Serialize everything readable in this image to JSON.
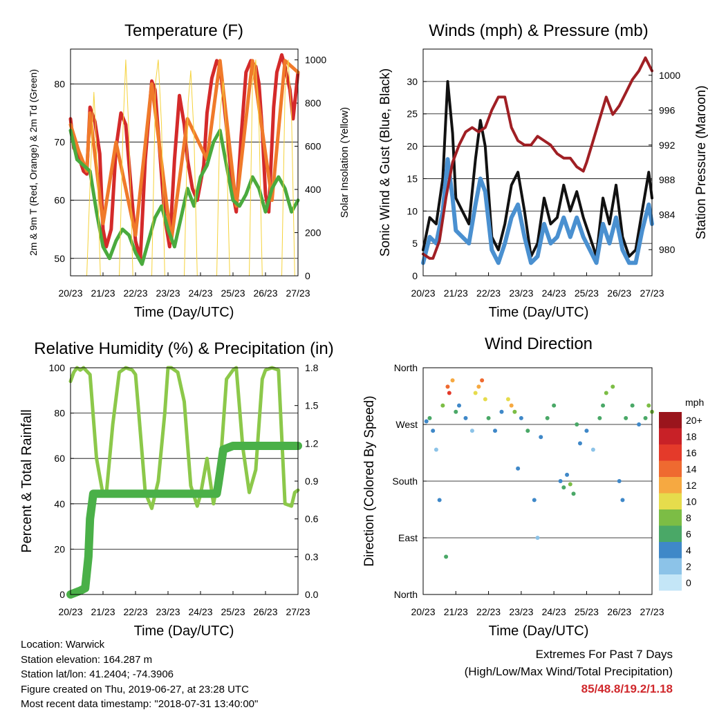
{
  "panels": {
    "temperature": {
      "title": "Temperature (F)",
      "xlabel": "Time (Day/UTC)",
      "ylabel_left": "2m & 9m T (Red, Orange) & 2m Td (Green)",
      "ylabel_right": "Solar Insolation (Yellow)"
    },
    "winds": {
      "title": "Winds (mph) & Pressure (mb)",
      "xlabel": "Time (Day/UTC)",
      "ylabel_left": "Sonic Wind & Gust (Blue, Black)",
      "ylabel_right": "Station Pressure (Maroon)"
    },
    "humidity": {
      "title": "Relative Humidity (%) & Precipitation (in)",
      "xlabel": "Time (Day/UTC)",
      "ylabel_left": "Percent & Total Rainfall"
    },
    "direction": {
      "title": "Wind Direction",
      "xlabel": "Time (Day/UTC)",
      "ylabel_left": "Direction (Colored By Speed)",
      "legend_title": "mph"
    }
  },
  "info": {
    "location": "Location: Warwick",
    "elevation": "Station elevation: 164.287 m",
    "latlon": "Station lat/lon: 41.2404; -74.3906",
    "created": "Figure created on Thu, 2019-06-27, at 23:28 UTC",
    "recent": "Most recent data timestamp: \"2018-07-31 13:40:00\""
  },
  "extremes": {
    "heading": "Extremes For Past 7 Days",
    "subheading": "(High/Low/Max Wind/Total Precipitation)",
    "values": "85/48.8/19.2/1.18"
  },
  "chart_data": [
    {
      "id": "temperature",
      "type": "line",
      "title": "Temperature (F)",
      "xlabel": "Time (Day/UTC)",
      "ylabel": "2m & 9m T (Red, Orange) & 2m Td (Green)",
      "y2label": "Solar Insolation (Yellow)",
      "x_ticks": [
        "20/23",
        "21/23",
        "22/23",
        "23/23",
        "24/23",
        "25/23",
        "26/23",
        "27/23"
      ],
      "ylim": [
        47,
        86
      ],
      "y_ticks": [
        50,
        60,
        70,
        80
      ],
      "y2lim": [
        0,
        1050
      ],
      "y2_ticks": [
        0,
        200,
        400,
        600,
        800,
        1000
      ],
      "grid": true,
      "series": [
        {
          "name": "2m T",
          "color": "#d42a2a",
          "x": [
            0,
            0.1,
            0.25,
            0.4,
            0.5,
            0.6,
            0.75,
            0.9,
            1.0,
            1.1,
            1.25,
            1.4,
            1.55,
            1.7,
            1.85,
            2.0,
            2.15,
            2.3,
            2.5,
            2.6,
            2.75,
            2.9,
            3.05,
            3.2,
            3.35,
            3.5,
            3.6,
            3.75,
            3.9,
            4.0,
            4.1,
            4.2,
            4.35,
            4.5,
            4.6,
            4.7,
            4.85,
            5.0,
            5.1,
            5.25,
            5.4,
            5.55,
            5.7,
            5.8,
            5.9,
            6.0,
            6.1,
            6.25,
            6.35,
            6.5,
            6.6,
            6.75,
            6.85,
            7.0
          ],
          "values": [
            74,
            69,
            67.5,
            65,
            64.5,
            76,
            73.5,
            68,
            55,
            52,
            55,
            69,
            75,
            73,
            63,
            53,
            50,
            67,
            80.5,
            79,
            68,
            57,
            52,
            67,
            78,
            73,
            67,
            62,
            60,
            63,
            66,
            75,
            81,
            84,
            83,
            78,
            70,
            61,
            58,
            71,
            82,
            84,
            83,
            80,
            72,
            61,
            58,
            76,
            82,
            85,
            83,
            79,
            74,
            82
          ]
        },
        {
          "name": "9m T",
          "color": "#f07a2a",
          "x": [
            0,
            0.25,
            0.5,
            0.6,
            1.0,
            1.4,
            2.0,
            2.5,
            3.1,
            3.6,
            4.2,
            4.6,
            5.1,
            5.6,
            6.2,
            6.6,
            7.0
          ],
          "values": [
            73,
            68.5,
            65,
            75,
            56,
            70,
            54,
            80,
            53,
            74,
            67,
            84,
            59,
            84,
            60,
            84,
            82
          ]
        },
        {
          "name": "2m Td",
          "color": "#4aaa3e",
          "x": [
            0,
            0.2,
            0.4,
            0.6,
            0.8,
            1.0,
            1.2,
            1.4,
            1.6,
            1.8,
            2.0,
            2.2,
            2.4,
            2.6,
            2.8,
            3.0,
            3.2,
            3.4,
            3.6,
            3.8,
            4.0,
            4.2,
            4.4,
            4.6,
            4.8,
            5.0,
            5.2,
            5.4,
            5.6,
            5.8,
            6.0,
            6.2,
            6.4,
            6.6,
            6.8,
            7.0
          ],
          "values": [
            72,
            67,
            66,
            65,
            58,
            52,
            50,
            53,
            55,
            54,
            51,
            49,
            53,
            57,
            59,
            55,
            52,
            57,
            62,
            59,
            64,
            66,
            70,
            72,
            66,
            60,
            59,
            61,
            64,
            62,
            58,
            62,
            64,
            62,
            58,
            60
          ]
        },
        {
          "name": "Solar Insolation",
          "axis": "right",
          "color": "#f5d23a",
          "x": [
            0.5,
            0.62,
            0.72,
            0.8,
            0.92,
            1.5,
            1.62,
            1.7,
            1.8,
            1.92,
            2.5,
            2.62,
            2.7,
            2.8,
            2.9,
            3.5,
            3.62,
            3.7,
            3.8,
            3.9,
            4.5,
            4.6,
            4.7,
            4.8,
            4.9,
            5.5,
            5.6,
            5.7,
            5.8,
            5.9,
            6.5,
            6.6,
            6.7,
            6.8,
            6.9
          ],
          "values": [
            0,
            500,
            850,
            600,
            0,
            0,
            700,
            1000,
            650,
            0,
            0,
            900,
            1000,
            700,
            0,
            0,
            800,
            950,
            650,
            0,
            0,
            750,
            900,
            600,
            0,
            0,
            900,
            1000,
            700,
            0,
            0,
            850,
            1000,
            750,
            0
          ]
        }
      ]
    },
    {
      "id": "winds",
      "type": "line",
      "title": "Winds (mph) & Pressure (mb)",
      "xlabel": "Time (Day/UTC)",
      "ylabel": "Sonic Wind & Gust (Blue, Black)",
      "y2label": "Station Pressure (Maroon)",
      "x_ticks": [
        "20/23",
        "21/23",
        "22/23",
        "23/23",
        "24/23",
        "25/23",
        "26/23",
        "27/23"
      ],
      "ylim": [
        0,
        35
      ],
      "y_ticks": [
        0,
        5,
        10,
        15,
        20,
        25,
        30
      ],
      "y2lim": [
        977,
        1003
      ],
      "y2_ticks": [
        980,
        984,
        988,
        992,
        996,
        1000
      ],
      "grid": true,
      "series": [
        {
          "name": "Gust",
          "color": "#111111",
          "x": [
            0,
            0.2,
            0.4,
            0.6,
            0.75,
            0.9,
            1.0,
            1.2,
            1.4,
            1.6,
            1.75,
            1.9,
            2.1,
            2.3,
            2.5,
            2.7,
            2.9,
            3.1,
            3.3,
            3.5,
            3.7,
            3.9,
            4.1,
            4.3,
            4.5,
            4.7,
            4.9,
            5.1,
            5.3,
            5.5,
            5.7,
            5.9,
            6.1,
            6.3,
            6.5,
            6.7,
            6.9,
            7.0
          ],
          "values": [
            4,
            9,
            8,
            15,
            30,
            22,
            12,
            10,
            8,
            18,
            24,
            20,
            6,
            4,
            8,
            14,
            16,
            10,
            3,
            5,
            12,
            8,
            9,
            14,
            10,
            13,
            9,
            6,
            3,
            12,
            8,
            14,
            6,
            3,
            4,
            10,
            16,
            12
          ]
        },
        {
          "name": "Wind",
          "color": "#4a90d0",
          "x": [
            0,
            0.2,
            0.4,
            0.6,
            0.75,
            0.9,
            1.0,
            1.2,
            1.4,
            1.6,
            1.75,
            1.9,
            2.1,
            2.3,
            2.5,
            2.7,
            2.9,
            3.1,
            3.3,
            3.5,
            3.7,
            3.9,
            4.1,
            4.3,
            4.5,
            4.7,
            4.9,
            5.1,
            5.3,
            5.5,
            5.7,
            5.9,
            6.1,
            6.3,
            6.5,
            6.7,
            6.9,
            7.0
          ],
          "values": [
            2,
            6,
            5,
            10,
            18,
            12,
            7,
            6,
            5,
            11,
            15,
            13,
            4,
            2,
            5,
            9,
            11,
            6,
            2,
            3,
            8,
            5,
            6,
            9,
            6,
            9,
            6,
            4,
            2,
            8,
            5,
            9,
            4,
            2,
            2,
            7,
            11,
            8
          ]
        },
        {
          "name": "Station Pressure",
          "axis": "right",
          "color": "#a01f24",
          "x": [
            0,
            0.2,
            0.3,
            0.5,
            0.7,
            0.9,
            1.1,
            1.3,
            1.5,
            1.7,
            1.9,
            2.1,
            2.3,
            2.5,
            2.7,
            2.9,
            3.1,
            3.3,
            3.5,
            3.7,
            3.9,
            4.1,
            4.3,
            4.5,
            4.7,
            4.9,
            5.0,
            5.2,
            5.4,
            5.6,
            5.8,
            6.0,
            6.2,
            6.4,
            6.6,
            6.8,
            7.0
          ],
          "values": [
            979.5,
            979,
            979,
            981,
            986,
            990,
            992,
            993.5,
            994,
            993.5,
            994,
            996,
            997.5,
            997.5,
            994,
            992.5,
            992,
            992,
            993,
            992.5,
            992,
            991,
            990.5,
            990.5,
            989.5,
            989,
            990,
            992.5,
            995,
            997.5,
            995.5,
            996.5,
            998,
            999.5,
            1000.5,
            1002,
            1000.5
          ]
        }
      ]
    },
    {
      "id": "humidity",
      "type": "line",
      "title": "Relative Humidity (%) & Precipitation (in)",
      "xlabel": "Time (Day/UTC)",
      "ylabel": "Percent & Total Rainfall",
      "x_ticks": [
        "20/23",
        "21/23",
        "22/23",
        "23/23",
        "24/23",
        "25/23",
        "26/23",
        "27/23"
      ],
      "ylim": [
        0,
        100
      ],
      "y_ticks": [
        0,
        20,
        40,
        60,
        80,
        100
      ],
      "y2lim": [
        0,
        1.8
      ],
      "y2_ticks": [
        "0.0",
        "0.3",
        "0.6",
        "0.9",
        "1.2",
        "1.5",
        "1.8"
      ],
      "grid": true,
      "series": [
        {
          "name": "Relative Humidity",
          "color": "#8cc84a",
          "x": [
            0,
            0.1,
            0.2,
            0.3,
            0.4,
            0.6,
            0.8,
            1.0,
            1.1,
            1.3,
            1.5,
            1.7,
            1.9,
            2.0,
            2.1,
            2.3,
            2.5,
            2.7,
            2.9,
            3.0,
            3.1,
            3.3,
            3.5,
            3.7,
            3.9,
            4.0,
            4.2,
            4.4,
            4.6,
            4.8,
            5.0,
            5.1,
            5.3,
            5.5,
            5.7,
            5.9,
            6.0,
            6.2,
            6.4,
            6.6,
            6.8,
            6.9,
            7.0
          ],
          "values": [
            94,
            98,
            100,
            99,
            100,
            97,
            60,
            44,
            44,
            75,
            98,
            100,
            99,
            97,
            80,
            45,
            38,
            50,
            80,
            100,
            100,
            98,
            85,
            48,
            39,
            44,
            60,
            40,
            55,
            95,
            99,
            100,
            65,
            45,
            55,
            95,
            99,
            100,
            99,
            40,
            39,
            45,
            46
          ]
        },
        {
          "name": "Total Rainfall",
          "axis": "right",
          "color": "#4ab048",
          "x": [
            0,
            0.3,
            0.45,
            0.55,
            0.6,
            0.7,
            0.8,
            4.5,
            4.55,
            4.62,
            4.7,
            5.0,
            7.0
          ],
          "values": [
            0,
            0.03,
            0.05,
            0.3,
            0.6,
            0.8,
            0.8,
            0.8,
            0.88,
            1.0,
            1.15,
            1.18,
            1.18
          ]
        }
      ]
    },
    {
      "id": "direction",
      "type": "scatter",
      "title": "Wind Direction",
      "xlabel": "Time (Day/UTC)",
      "ylabel": "Direction (Colored By Speed)",
      "x_ticks": [
        "20/23",
        "21/23",
        "22/23",
        "23/23",
        "24/23",
        "25/23",
        "26/23",
        "27/23"
      ],
      "y_ticks": [
        "North",
        "East",
        "South",
        "West",
        "North"
      ],
      "y_tick_values": [
        0,
        90,
        180,
        270,
        360
      ],
      "ylim": [
        0,
        360
      ],
      "grid": true,
      "legend": {
        "title": "mph",
        "position": "right",
        "labels": [
          "0",
          "2",
          "4",
          "6",
          "8",
          "10",
          "12",
          "14",
          "16",
          "18",
          "20+"
        ],
        "colors": [
          "#c4e6f7",
          "#8cc3e8",
          "#3f88c8",
          "#4aa867",
          "#7cbd45",
          "#e6dc4c",
          "#f6a941",
          "#ef6a30",
          "#e43a2a",
          "#c82127",
          "#9a151c"
        ]
      },
      "series": [
        {
          "name": "Wind Direction",
          "x": [
            0.1,
            0.2,
            0.3,
            0.4,
            0.5,
            0.6,
            0.7,
            0.75,
            0.8,
            0.9,
            1.0,
            1.1,
            1.3,
            1.5,
            1.6,
            1.7,
            1.8,
            1.9,
            2.0,
            2.2,
            2.4,
            2.6,
            2.7,
            2.8,
            2.9,
            3.0,
            3.2,
            3.4,
            3.5,
            3.6,
            3.8,
            4.0,
            4.2,
            4.3,
            4.4,
            4.5,
            4.6,
            4.7,
            4.8,
            5.0,
            5.2,
            5.4,
            5.5,
            5.6,
            5.8,
            6.0,
            6.1,
            6.2,
            6.4,
            6.6,
            6.8,
            6.9,
            7.0
          ],
          "y": [
            275,
            280,
            260,
            230,
            150,
            300,
            60,
            330,
            320,
            340,
            290,
            300,
            280,
            260,
            320,
            330,
            340,
            310,
            280,
            260,
            290,
            310,
            300,
            290,
            200,
            280,
            260,
            150,
            90,
            250,
            280,
            300,
            180,
            170,
            190,
            175,
            160,
            270,
            240,
            260,
            230,
            280,
            300,
            320,
            330,
            180,
            150,
            280,
            300,
            270,
            280,
            300,
            290
          ],
          "speed": [
            4,
            6,
            3,
            2,
            3,
            8,
            5,
            14,
            16,
            12,
            6,
            4,
            3,
            2,
            10,
            12,
            14,
            10,
            6,
            3,
            4,
            10,
            12,
            8,
            3,
            4,
            5,
            3,
            2,
            4,
            5,
            6,
            4,
            6,
            3,
            8,
            6,
            5,
            4,
            3,
            2,
            6,
            5,
            7,
            8,
            4,
            3,
            5,
            6,
            4,
            6,
            8,
            7
          ]
        }
      ]
    }
  ]
}
